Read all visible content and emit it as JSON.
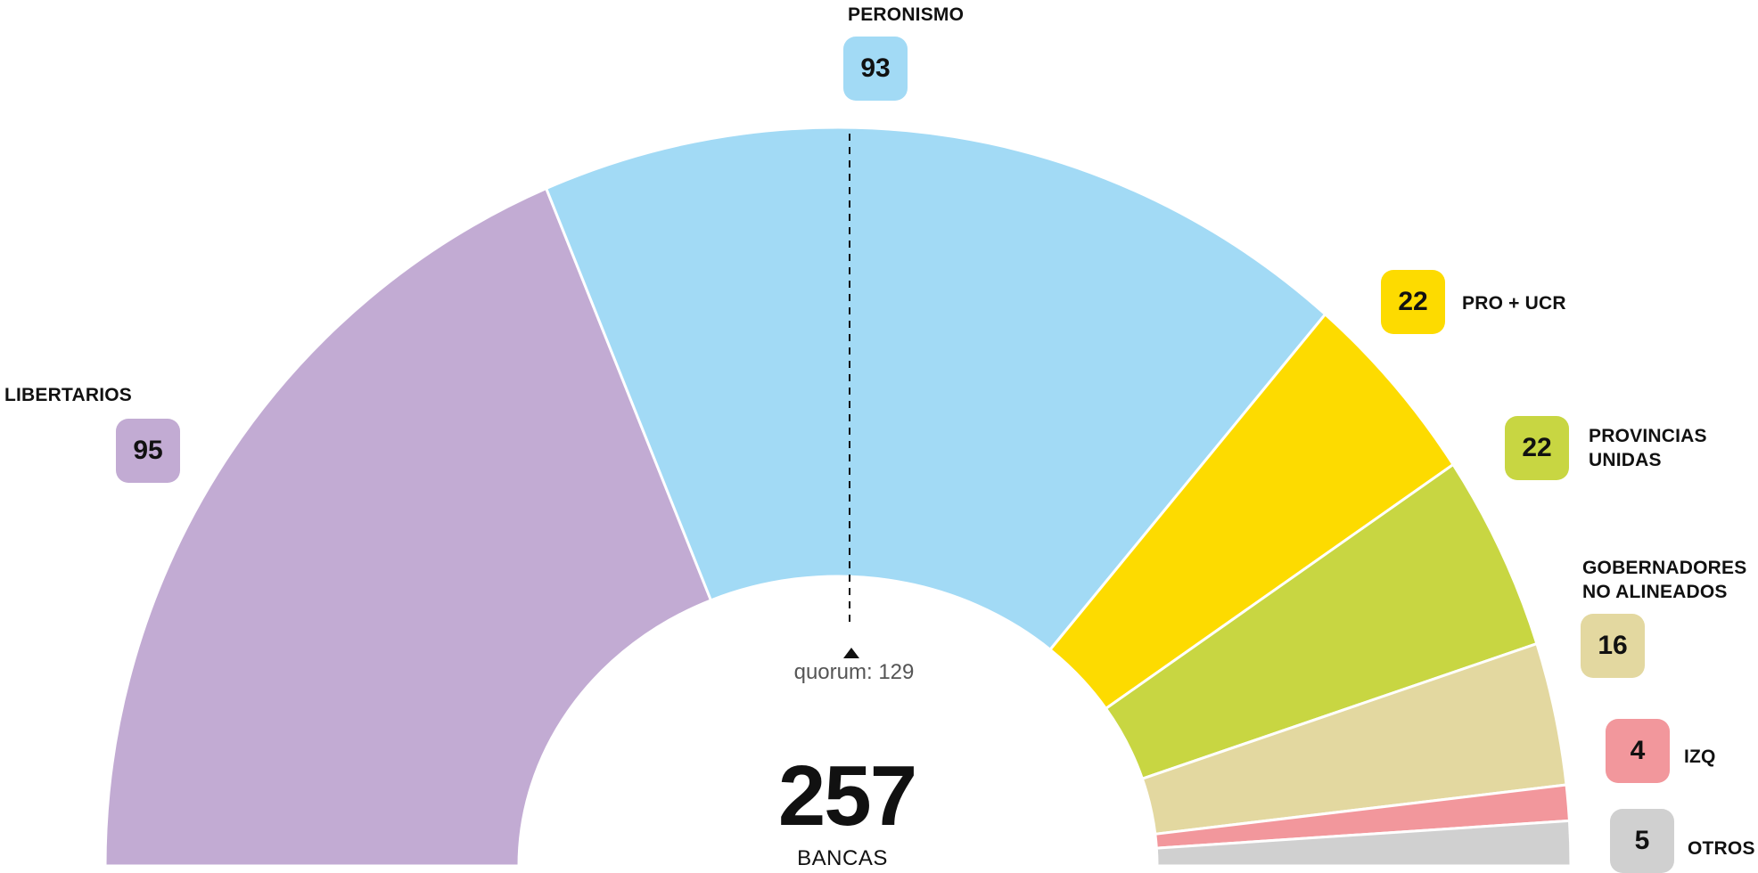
{
  "chart_data": {
    "type": "pie",
    "subtype": "half-donut parliament chart",
    "title": "",
    "total_seats": 257,
    "total_caption": "BANCAS",
    "quorum": 129,
    "quorum_label": "quorum: 129",
    "categories": [
      "LIBERTARIOS",
      "PERONISMO",
      "PRO + UCR",
      "PROVINCIAS UNIDAS",
      "GOBERNADORES NO ALINEADOS",
      "IZQ",
      "OTROS"
    ],
    "values": [
      95,
      93,
      22,
      22,
      16,
      4,
      5
    ],
    "colors": [
      "#C2ABD3",
      "#A2DAF5",
      "#FDDB00",
      "#C8D642",
      "#E3D8A0",
      "#F2979C",
      "#D0D0D0"
    ],
    "legend_position": "labels around arc"
  },
  "labels": {
    "libertarios": {
      "name": "LIBERTARIOS",
      "value": "95",
      "color": "#C2ABD3"
    },
    "peronismo": {
      "name": "PERONISMO",
      "value": "93",
      "color": "#A2DAF5"
    },
    "pro_ucr": {
      "name": "PRO + UCR",
      "value": "22",
      "color": "#FDDB00"
    },
    "provincias_unidas": {
      "name": "PROVINCIAS\nUNIDAS",
      "value": "22",
      "color": "#C8D642"
    },
    "gobernadores": {
      "name": "GOBERNADORES\nNO ALINEADOS",
      "value": "16",
      "color": "#E3D8A0"
    },
    "izq": {
      "name": "IZQ",
      "value": "4",
      "color": "#F2979C"
    },
    "otros": {
      "name": "OTROS",
      "value": "5",
      "color": "#D0D0D0"
    }
  },
  "center": {
    "total": "257",
    "caption": "BANCAS",
    "quorum_text": "quorum: 129"
  }
}
